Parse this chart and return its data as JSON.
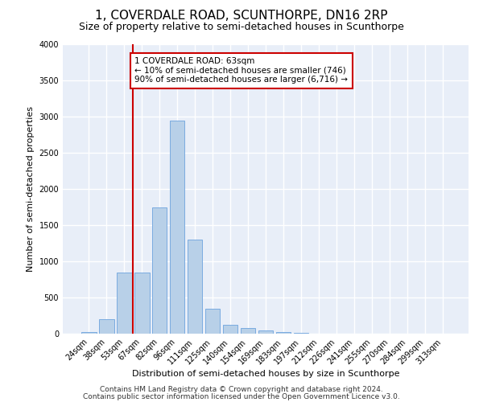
{
  "title1": "1, COVERDALE ROAD, SCUNTHORPE, DN16 2RP",
  "title2": "Size of property relative to semi-detached houses in Scunthorpe",
  "xlabel": "Distribution of semi-detached houses by size in Scunthorpe",
  "ylabel": "Number of semi-detached properties",
  "categories": [
    "24sqm",
    "38sqm",
    "53sqm",
    "67sqm",
    "82sqm",
    "96sqm",
    "111sqm",
    "125sqm",
    "140sqm",
    "154sqm",
    "169sqm",
    "183sqm",
    "197sqm",
    "212sqm",
    "226sqm",
    "241sqm",
    "255sqm",
    "270sqm",
    "284sqm",
    "299sqm",
    "313sqm"
  ],
  "values": [
    20,
    200,
    850,
    850,
    1750,
    2950,
    1300,
    350,
    120,
    75,
    40,
    20,
    8,
    4,
    2,
    1,
    1,
    0,
    0,
    0,
    0
  ],
  "bar_color": "#b8d0e8",
  "bar_edge_color": "#7aabe0",
  "vline_x": 2.5,
  "vline_color": "#cc0000",
  "annotation_text": "1 COVERDALE ROAD: 63sqm\n← 10% of semi-detached houses are smaller (746)\n90% of semi-detached houses are larger (6,716) →",
  "annotation_box_color": "#ffffff",
  "annotation_box_edge": "#cc0000",
  "ylim": [
    0,
    4000
  ],
  "footnote1": "Contains HM Land Registry data © Crown copyright and database right 2024.",
  "footnote2": "Contains public sector information licensed under the Open Government Licence v3.0.",
  "background_color": "#e8eef8",
  "grid_color": "#ffffff",
  "title1_fontsize": 11,
  "title2_fontsize": 9,
  "axis_label_fontsize": 8,
  "tick_fontsize": 7,
  "annotation_fontsize": 7.5,
  "footnote_fontsize": 6.5
}
